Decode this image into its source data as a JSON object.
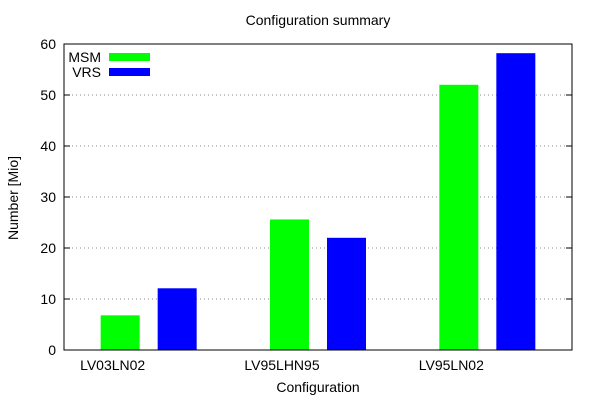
{
  "chart_data": {
    "type": "bar",
    "title": "Configuration summary",
    "xlabel": "Configuration",
    "ylabel": "Number [Mio]",
    "categories": [
      "LV03LN02",
      "LV95LHN95",
      "LV95LN02"
    ],
    "series": [
      {
        "name": "MSM",
        "color": "#00ff00",
        "values": [
          6.8,
          25.6,
          52.0
        ]
      },
      {
        "name": "VRS",
        "color": "#0000ff",
        "values": [
          12.1,
          22.0,
          58.2
        ]
      }
    ],
    "ylim": [
      0,
      60
    ],
    "yticks": [
      0,
      10,
      20,
      30,
      40,
      50,
      60
    ],
    "grid": "horizontal dotted",
    "legend_position": "top-left"
  }
}
